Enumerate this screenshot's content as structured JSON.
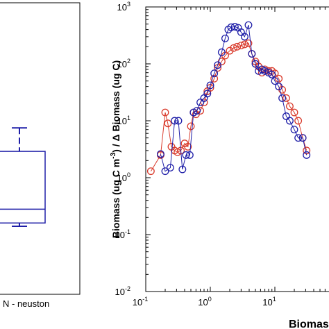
{
  "chart_data": [
    {
      "type": "box",
      "xlabel": "N - neuston",
      "color": "#1f1fa8",
      "box": {
        "whisker_low": 0.14,
        "q1": 0.16,
        "median": 0.28,
        "q3": 2.9,
        "whisker_high": 7.5
      }
    },
    {
      "type": "scatter",
      "xlabel": "Biomas",
      "ylabel": "Biomass (ug C m⁻³) / Δ Biomass (ug C)",
      "xscale": "log",
      "yscale": "log",
      "xlim": [
        0.1,
        80
      ],
      "ylim": [
        0.01,
        1000
      ],
      "x_ticks": [
        {
          "value": 0.1,
          "base": "10",
          "exp": "-1"
        },
        {
          "value": 1,
          "base": "10",
          "exp": "0"
        },
        {
          "value": 10,
          "base": "10",
          "exp": "1"
        }
      ],
      "y_ticks": [
        {
          "value": 0.01,
          "base": "10",
          "exp": "-2"
        },
        {
          "value": 0.1,
          "base": "10",
          "exp": "-1"
        },
        {
          "value": 1,
          "base": "10",
          "exp": "0"
        },
        {
          "value": 10,
          "base": "10",
          "exp": "1"
        },
        {
          "value": 100,
          "base": "10",
          "exp": "2"
        },
        {
          "value": 1000,
          "base": "10",
          "exp": "3"
        }
      ],
      "series": [
        {
          "color": "#d93a2b",
          "x": [
            0.12,
            0.17,
            0.2,
            0.22,
            0.25,
            0.28,
            0.31,
            0.35,
            0.4,
            0.45,
            0.5,
            0.55,
            0.6,
            0.7,
            0.8,
            0.9,
            1.0,
            1.15,
            1.3,
            1.5,
            1.7,
            2.0,
            2.3,
            2.6,
            3.0,
            3.4,
            3.9,
            4.4,
            5.0,
            5.6,
            6.3,
            7.0,
            8.0,
            9.0,
            10.0,
            11.5,
            13,
            15,
            17,
            20,
            23,
            27,
            31
          ],
          "y": [
            1.3,
            2.5,
            14,
            9,
            3.5,
            3,
            2.8,
            3,
            4,
            3.5,
            8,
            14,
            13,
            15,
            21,
            33,
            38,
            55,
            85,
            110,
            140,
            170,
            190,
            200,
            210,
            220,
            230,
            150,
            110,
            90,
            70,
            80,
            75,
            75,
            68,
            55,
            35,
            25,
            18,
            14,
            10,
            5,
            3
          ]
        },
        {
          "color": "#1f1fa8",
          "x": [
            0.17,
            0.2,
            0.24,
            0.28,
            0.32,
            0.37,
            0.42,
            0.48,
            0.55,
            0.62,
            0.7,
            0.8,
            0.9,
            1.0,
            1.15,
            1.3,
            1.5,
            1.7,
            1.9,
            2.1,
            2.4,
            2.7,
            3.0,
            3.4,
            3.9,
            4.4,
            5.0,
            5.6,
            6.3,
            7.0,
            8.0,
            9.0,
            10.0,
            11.5,
            13,
            15,
            17,
            20,
            23,
            27,
            31
          ],
          "y": [
            2.6,
            1.3,
            1.5,
            10,
            10,
            1.4,
            2.5,
            2.5,
            14,
            15,
            21,
            25,
            30,
            42,
            68,
            95,
            160,
            280,
            400,
            440,
            450,
            430,
            360,
            300,
            480,
            150,
            100,
            75,
            80,
            75,
            70,
            65,
            50,
            40,
            25,
            12,
            10,
            7,
            5,
            5,
            2.5
          ]
        }
      ]
    }
  ]
}
